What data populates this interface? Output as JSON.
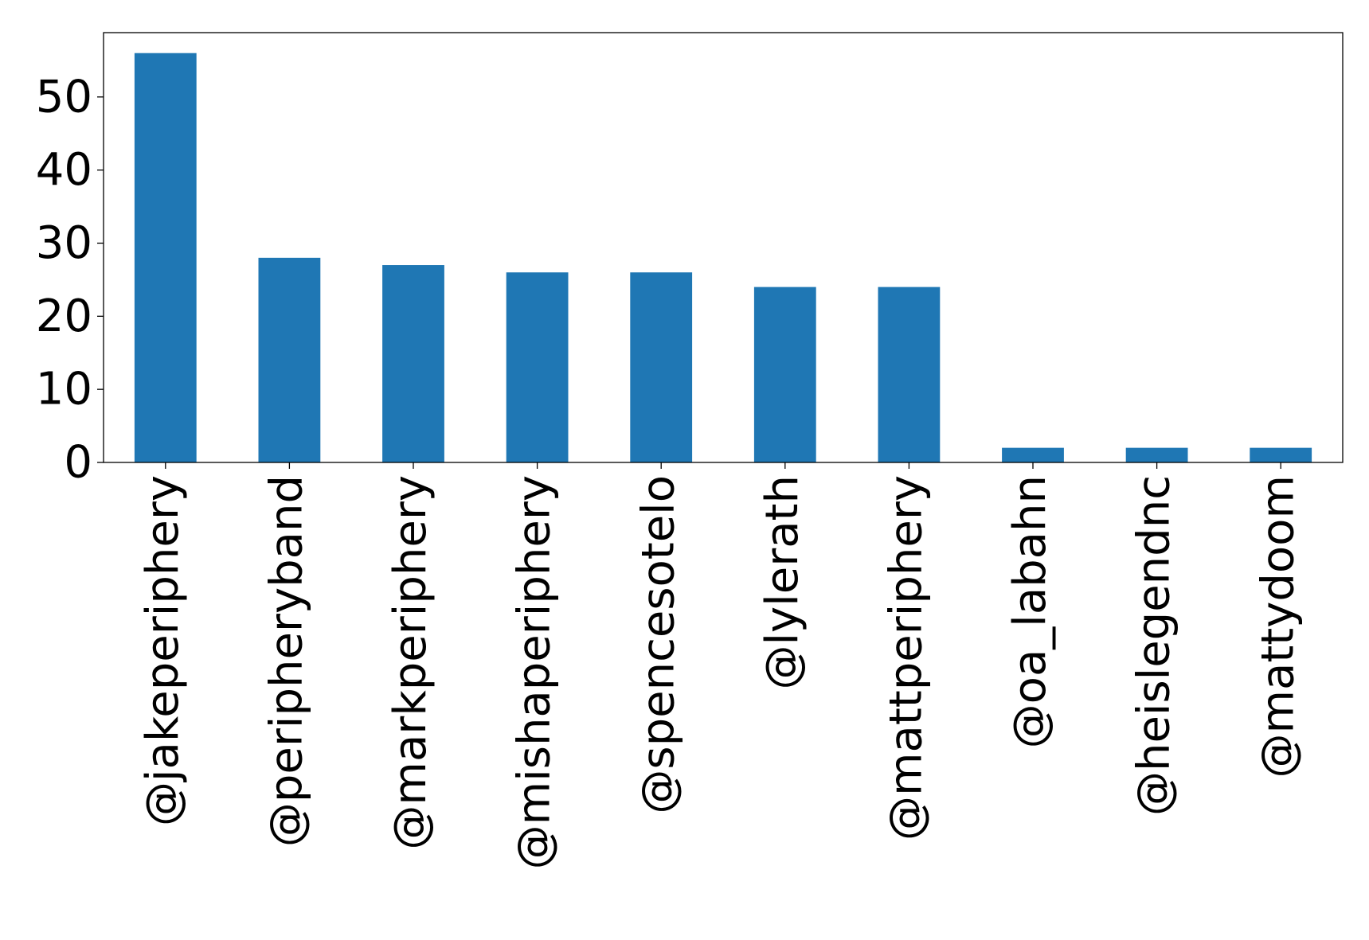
{
  "chart_data": {
    "type": "bar",
    "categories": [
      "@jakeperiphery",
      "@peripheryband",
      "@markperiphery",
      "@mishaperiphery",
      "@spencesotelo",
      "@lylerath",
      "@mattperiphery",
      "@oa_labahn",
      "@heislegendnc",
      "@mattydoom"
    ],
    "values": [
      56,
      28,
      27,
      26,
      26,
      24,
      24,
      2,
      2,
      2
    ],
    "ylim": [
      0,
      58.8
    ],
    "yticks": [
      0,
      10,
      20,
      30,
      40,
      50
    ],
    "title": "",
    "xlabel": "",
    "ylabel": "",
    "grid": false,
    "bar_color": "#1f77b4"
  }
}
